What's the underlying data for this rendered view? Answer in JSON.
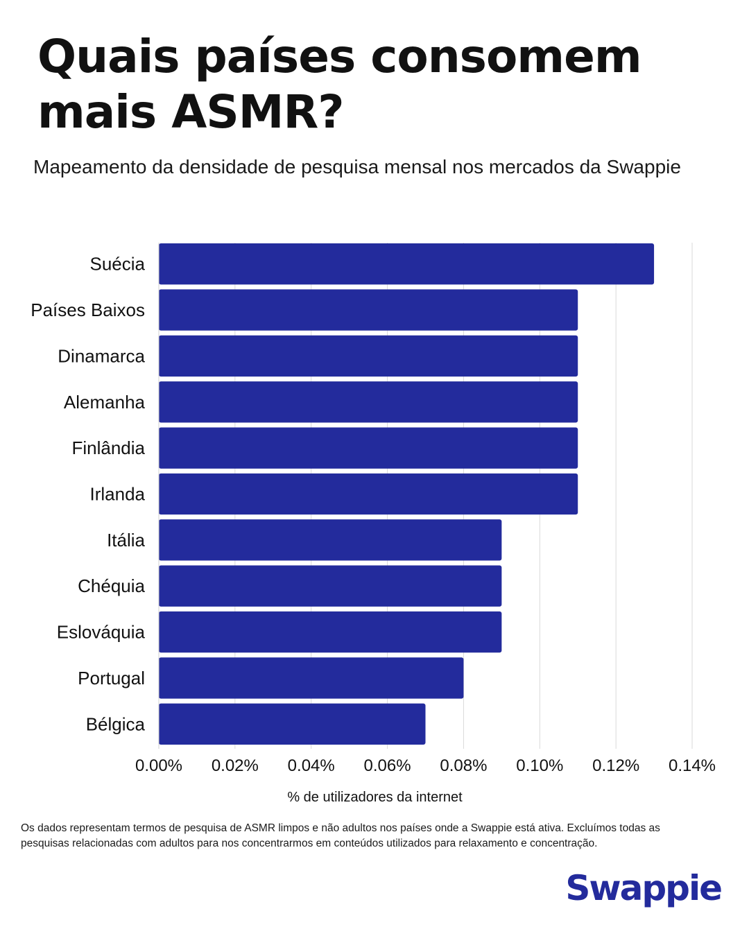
{
  "header": {
    "title": "Quais países consomem mais ASMR?",
    "subtitle": "Mapeamento da densidade de pesquisa mensal nos mercados da Swappie"
  },
  "chart_data": {
    "type": "bar",
    "orientation": "horizontal",
    "title": "Quais países consomem mais ASMR?",
    "subtitle": "Mapeamento da densidade de pesquisa mensal nos mercados da Swappie",
    "categories": [
      "Suécia",
      "Países Baixos",
      "Dinamarca",
      "Alemanha",
      "Finlândia",
      "Irlanda",
      "Itália",
      "Chéquia",
      "Eslováquia",
      "Portugal",
      "Bélgica"
    ],
    "values": [
      0.13,
      0.11,
      0.11,
      0.11,
      0.11,
      0.11,
      0.09,
      0.09,
      0.09,
      0.08,
      0.07
    ],
    "xlabel": "% de utilizadores da internet",
    "ylabel": "",
    "xlim": [
      0,
      0.14
    ],
    "xticks": [
      0,
      0.02,
      0.04,
      0.06,
      0.08,
      0.1,
      0.12,
      0.14
    ],
    "xtick_labels": [
      "0.00%",
      "0.02%",
      "0.04%",
      "0.06%",
      "0.08%",
      "0.10%",
      "0.12%",
      "0.14%"
    ],
    "grid": "vertical",
    "legend": "none",
    "bar_color": "#232b9c"
  },
  "footer": {
    "note": "Os dados representam termos de pesquisa de ASMR limpos e não adultos nos países onde a Swappie está ativa. Excluímos todas as pesquisas relacionadas com adultos para nos concentrarmos em conteúdos utilizados para relaxamento e concentração.",
    "brand": "Swappie",
    "brand_color": "#232b9c"
  }
}
